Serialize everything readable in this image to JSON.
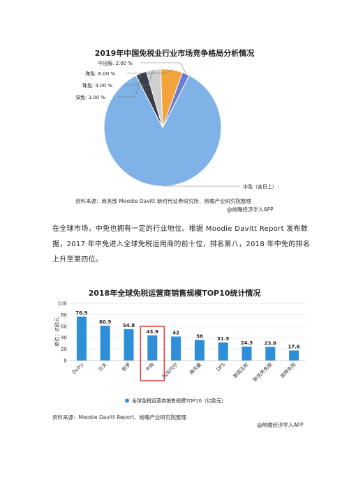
{
  "chart1": {
    "title": "2019年中国免税业行业市场竞争格局分析情况",
    "source": "资料来源：商务部 Moodie Davitt 新时代证券研究所、前瞻产业研究院整理",
    "brand": "@前瞻经济学人APP"
  },
  "paragraph": {
    "line1": "在全球市场，中免也拥有一定的行业地位。根据 Moodie Davitt Report 发布数",
    "line2": "据，2017 年中免进入全球免税运用商的前十位，排名第八，2018 年中免的排名",
    "line3": "上升至第四位。"
  },
  "chart2": {
    "title": "2018年全球免税运营商销售规模TOP10统计情况",
    "source": "资料来源：Moodie Davitt Report、前瞻产业研究院整理",
    "brand": "@前瞻经济学人APP"
  },
  "colors": {
    "bar": "#2E8FD8",
    "pie_main": "#7FB3E8",
    "pie_dark": "#3A3F4A",
    "pie_orange": "#F3A33B",
    "pie_purple": "#6A7BD0",
    "highlight": "#E03A3A"
  },
  "chart_data": [
    {
      "type": "pie",
      "title": "2019年中国免税业行业市场竞争格局分析情况",
      "slices": [
        {
          "label": "中免（含日上）: 85.00 %",
          "value": 85.0,
          "color": "#7FB3E8"
        },
        {
          "label": "深免: 3.00 %",
          "value": 3.0,
          "color": "#3A3F4A"
        },
        {
          "label": "珠免: 4.00 %",
          "value": 4.0,
          "color": "#CFCFCF"
        },
        {
          "label": "海免: 6.00 %",
          "value": 6.0,
          "color": "#F3A33B"
        },
        {
          "label": "中出服: 2.00 %",
          "value": 2.0,
          "color": "#6A7BD0"
        }
      ]
    },
    {
      "type": "bar",
      "title": "2018年全球免税运营商销售规模TOP10统计情况",
      "categories": [
        "Dufry",
        "乐天",
        "新罗",
        "中免",
        "拉加代尔",
        "海内曼",
        "DFS",
        "泰国王权",
        "新世界免税",
        "迪拜免税"
      ],
      "values": [
        76.9,
        60.9,
        54.8,
        43.9,
        42,
        36,
        31.5,
        24.3,
        23.8,
        17.6
      ],
      "value_labels": [
        "76.9",
        "60.9",
        "54.8",
        "43.9",
        "42",
        "36",
        "31.5",
        "24.3",
        "23.8",
        "17.6"
      ],
      "ylabel": "单位：亿欧元",
      "yticks": [
        "0",
        "20",
        "40",
        "60",
        "80",
        "100"
      ],
      "ylim": [
        0,
        100
      ],
      "highlight_index": 3,
      "legend": "全球免税运营商销售规模TOP10（亿欧元）",
      "legend_position": "bottom"
    }
  ]
}
